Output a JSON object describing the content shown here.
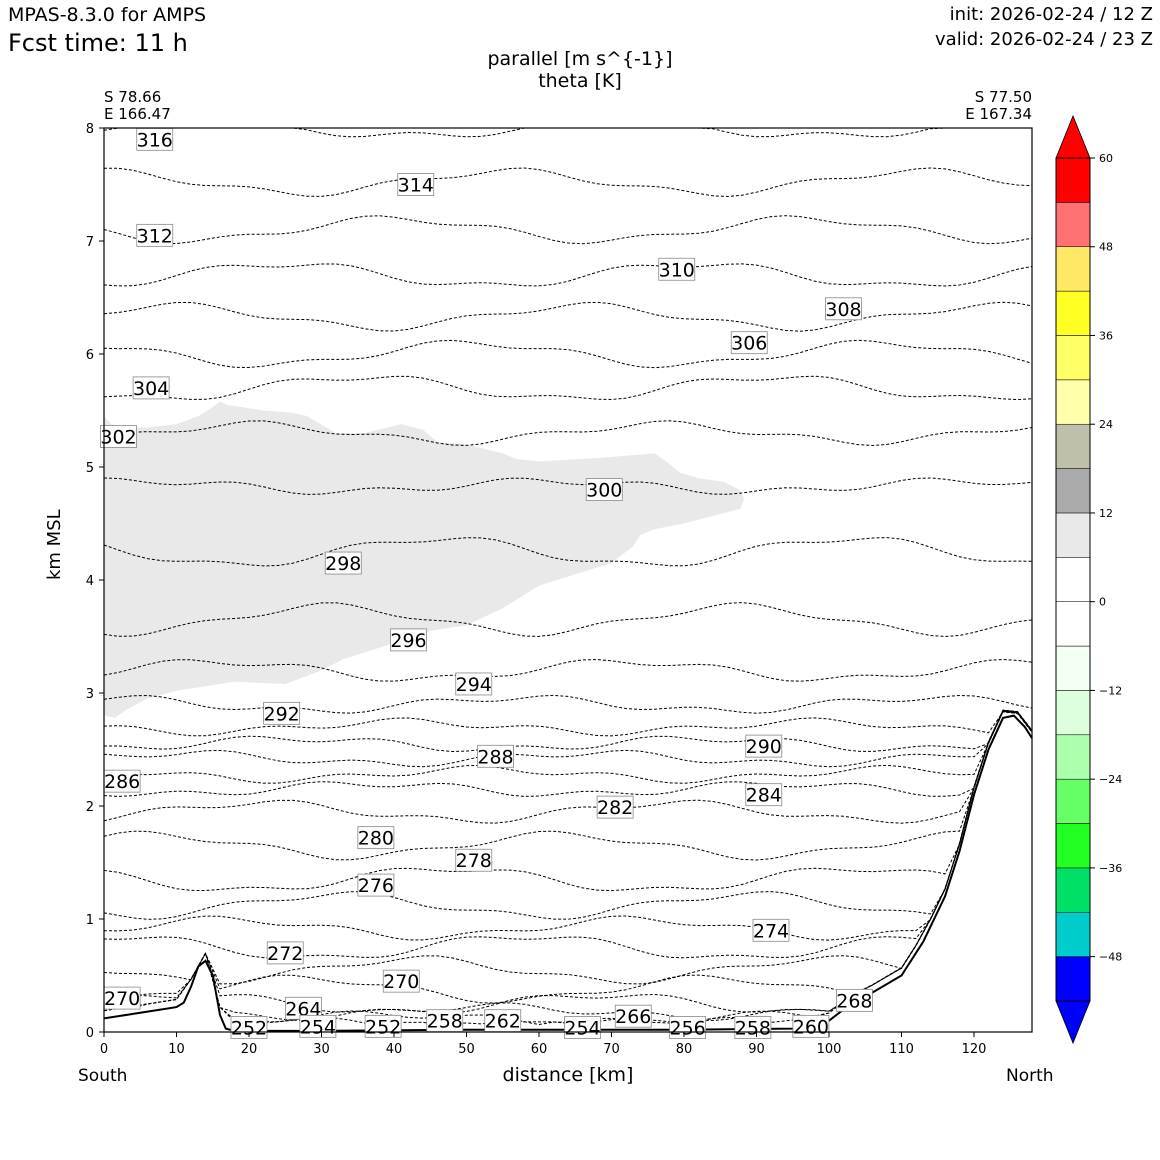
{
  "header": {
    "model": "MPAS-8.3.0 for AMPS",
    "fcst": "Fcst time:   11 h",
    "init": "init: 2026-02-24 / 12 Z",
    "valid": "valid: 2026-02-24 / 23 Z"
  },
  "endpoints": {
    "left_lat": "S 78.66",
    "left_lon": "E 166.47",
    "right_lat": "S 77.50",
    "right_lon": "E 167.34",
    "left_name": "South",
    "right_name": "North"
  },
  "chart_data": {
    "type": "contour cross-section",
    "title": "parallel [m s^{-1}]",
    "subtitle": "theta [K]",
    "xlabel": "distance [km]",
    "ylabel": "km MSL",
    "xlim": [
      0,
      128
    ],
    "ylim": [
      0,
      8
    ],
    "x_ticks": [
      0,
      10,
      20,
      30,
      40,
      50,
      60,
      70,
      80,
      90,
      100,
      110,
      120
    ],
    "y_ticks": [
      0,
      1,
      2,
      3,
      4,
      5,
      6,
      7,
      8
    ],
    "colorbar": {
      "levels": [
        -54,
        -48,
        -42,
        -36,
        -30,
        -24,
        -18,
        -12,
        -6,
        0,
        6,
        12,
        18,
        24,
        30,
        36,
        42,
        48,
        54,
        60
      ],
      "tick_labels": [
        "60",
        "48",
        "36",
        "24",
        "12",
        "0",
        "−12",
        "−24",
        "−36",
        "−48"
      ],
      "tick_values": [
        60,
        48,
        36,
        24,
        12,
        0,
        -12,
        -24,
        -36,
        -48
      ],
      "colors": [
        "#0000ff",
        "#00cccc",
        "#00e066",
        "#22ff22",
        "#66ff66",
        "#aaffaa",
        "#ddffdd",
        "#f4fff4",
        "#ffffff",
        "#ffffff",
        "#e9e9e9",
        "#aaaaaa",
        "#c0c0aa",
        "#ffffaa",
        "#ffff66",
        "#ffff22",
        "#ffe866",
        "#ff7070",
        "#ff0000"
      ],
      "under_color": "#0000ff",
      "over_color": "#ff0000"
    },
    "shaded_region_range_ms": [
      6,
      12
    ],
    "terrain": {
      "x": [
        0,
        4,
        8,
        10,
        11,
        12,
        13,
        14,
        15,
        16,
        16.8,
        18,
        30,
        50,
        80,
        95,
        100,
        103,
        106,
        110,
        113,
        116,
        118,
        120,
        122,
        124,
        125.5,
        127,
        128
      ],
      "z": [
        0.12,
        0.16,
        0.2,
        0.22,
        0.26,
        0.4,
        0.58,
        0.63,
        0.5,
        0.15,
        0.03,
        0.01,
        0.01,
        0.02,
        0.02,
        0.03,
        0.1,
        0.25,
        0.35,
        0.5,
        0.8,
        1.2,
        1.6,
        2.1,
        2.5,
        2.78,
        2.8,
        2.7,
        2.6
      ]
    },
    "theta_labels": [
      {
        "value": "316",
        "x": 7,
        "z": 7.9
      },
      {
        "value": "314",
        "x": 43,
        "z": 7.5
      },
      {
        "value": "312",
        "x": 7,
        "z": 7.05
      },
      {
        "value": "310",
        "x": 79,
        "z": 6.75
      },
      {
        "value": "308",
        "x": 102,
        "z": 6.4
      },
      {
        "value": "306",
        "x": 89,
        "z": 6.1
      },
      {
        "value": "304",
        "x": 6.5,
        "z": 5.7
      },
      {
        "value": "302",
        "x": 2,
        "z": 5.27
      },
      {
        "value": "300",
        "x": 69,
        "z": 4.8
      },
      {
        "value": "298",
        "x": 33,
        "z": 4.15
      },
      {
        "value": "296",
        "x": 42,
        "z": 3.47
      },
      {
        "value": "294",
        "x": 51,
        "z": 3.08
      },
      {
        "value": "292",
        "x": 24.5,
        "z": 2.82
      },
      {
        "value": "290",
        "x": 91,
        "z": 2.53
      },
      {
        "value": "288",
        "x": 54,
        "z": 2.44
      },
      {
        "value": "286",
        "x": 2.5,
        "z": 2.22
      },
      {
        "value": "284",
        "x": 91,
        "z": 2.1
      },
      {
        "value": "282",
        "x": 70.5,
        "z": 1.99
      },
      {
        "value": "280",
        "x": 37.5,
        "z": 1.72
      },
      {
        "value": "278",
        "x": 51,
        "z": 1.52
      },
      {
        "value": "276",
        "x": 37.5,
        "z": 1.3
      },
      {
        "value": "274",
        "x": 92,
        "z": 0.9
      },
      {
        "value": "272",
        "x": 25,
        "z": 0.7
      },
      {
        "value": "270",
        "x": 2.5,
        "z": 0.3
      },
      {
        "value": "270",
        "x": 41,
        "z": 0.45
      },
      {
        "value": "268",
        "x": 103.5,
        "z": 0.28
      },
      {
        "value": "266",
        "x": 73,
        "z": 0.14
      },
      {
        "value": "264",
        "x": 27.5,
        "z": 0.21
      },
      {
        "value": "262",
        "x": 55,
        "z": 0.1
      },
      {
        "value": "258",
        "x": 47,
        "z": 0.1
      },
      {
        "value": "258",
        "x": 89.5,
        "z": 0.04
      },
      {
        "value": "256",
        "x": 80.5,
        "z": 0.04
      },
      {
        "value": "260",
        "x": 97.5,
        "z": 0.05
      },
      {
        "value": "254",
        "x": 29.5,
        "z": 0.05
      },
      {
        "value": "254",
        "x": 66,
        "z": 0.04
      },
      {
        "value": "252",
        "x": 20,
        "z": 0.04
      },
      {
        "value": "252",
        "x": 38.5,
        "z": 0.05
      }
    ]
  }
}
